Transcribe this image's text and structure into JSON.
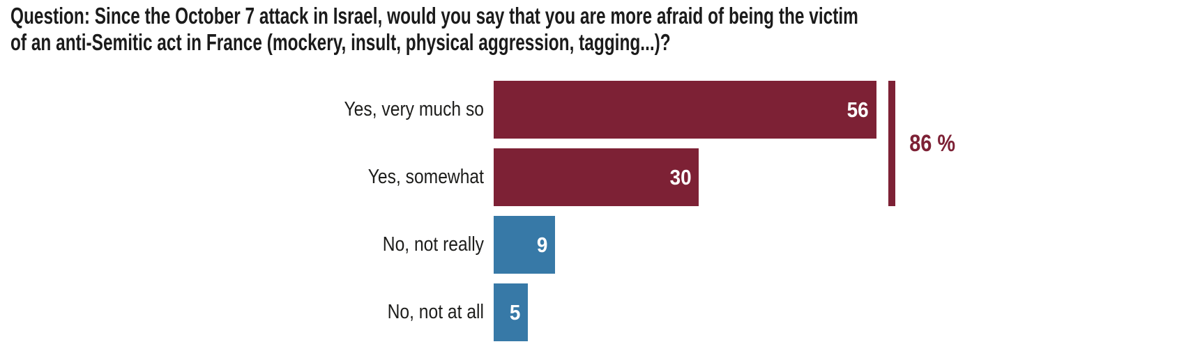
{
  "page": {
    "background": "#FFFFFF"
  },
  "title": {
    "line1": "Question: Since the October 7 attack in Israel, would you say that you are more afraid of being the victim",
    "line2": "of an anti-Semitic act in France (mockery, insult, physical aggression, tagging...)?",
    "color": "#1B1B1B"
  },
  "chart_data": {
    "type": "bar",
    "orientation": "horizontal",
    "unit": "percent",
    "categories": [
      "Yes, very much so",
      "Yes, somewhat",
      "No, not really",
      "No, not at all"
    ],
    "values": [
      56,
      30,
      9,
      5
    ],
    "bar_colors": [
      "#7D2135",
      "#7D2135",
      "#3779A7",
      "#3779A7"
    ],
    "value_label_color": "#FFFFFF",
    "category_label_color": "#1D1D1B",
    "annotation": {
      "label": "86 %",
      "value": 86,
      "spans_categories": [
        "Yes, very much so",
        "Yes, somewhat"
      ],
      "color": "#7D2135"
    },
    "xlim": [
      0,
      60
    ],
    "grid": "off",
    "legend": "none"
  }
}
